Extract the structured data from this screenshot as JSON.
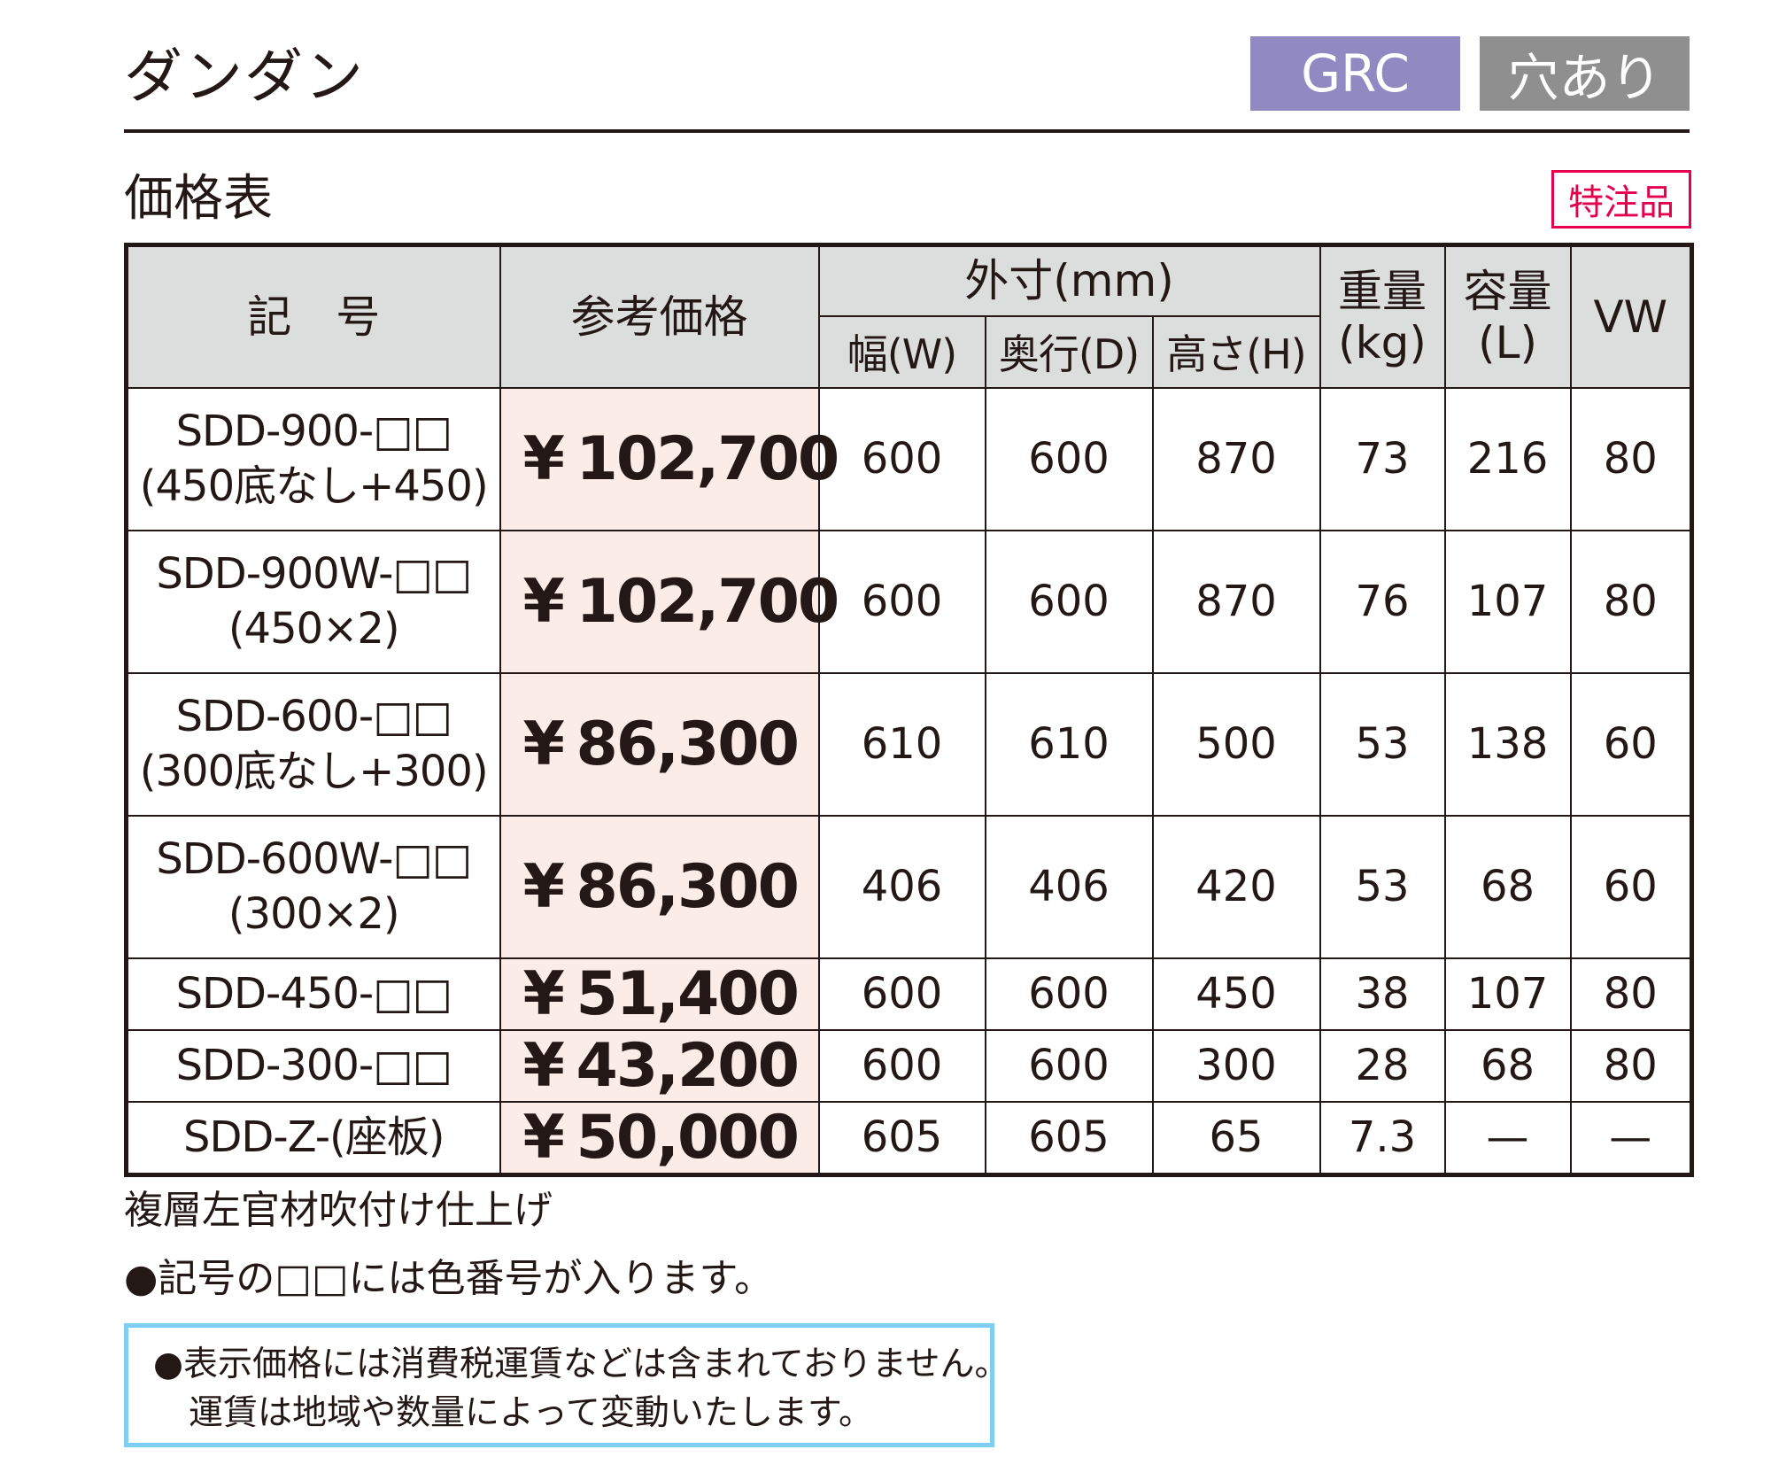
{
  "header": {
    "title": "ダンダン",
    "badges": [
      "GRC",
      "穴あり"
    ],
    "section_title": "価格表",
    "special_order": "特注品"
  },
  "table": {
    "headers": {
      "code": "記　号",
      "price": "参考価格",
      "dimensions": "外寸(mm)",
      "width": "幅(W)",
      "depth": "奥行(D)",
      "height": "高さ(H)",
      "weight_line1": "重量",
      "weight_line2": "(kg)",
      "capacity_line1": "容量",
      "capacity_line2": "(L)",
      "vw": "VW"
    },
    "rows": [
      {
        "code": "SDD-900-□□",
        "code_sub": "(450底なし+450)",
        "yen": "¥",
        "price": "102,700",
        "w": "600",
        "d": "600",
        "h": "870",
        "kg": "73",
        "l": "216",
        "vw": "80"
      },
      {
        "code": "SDD-900W-□□",
        "code_sub": "(450×2)",
        "yen": "¥",
        "price": "102,700",
        "w": "600",
        "d": "600",
        "h": "870",
        "kg": "76",
        "l": "107",
        "vw": "80"
      },
      {
        "code": "SDD-600-□□",
        "code_sub": "(300底なし+300)",
        "yen": "¥",
        "price": "86,300",
        "w": "610",
        "d": "610",
        "h": "500",
        "kg": "53",
        "l": "138",
        "vw": "60"
      },
      {
        "code": "SDD-600W-□□",
        "code_sub": "(300×2)",
        "yen": "¥",
        "price": "86,300",
        "w": "406",
        "d": "406",
        "h": "420",
        "kg": "53",
        "l": "68",
        "vw": "60"
      },
      {
        "code": "SDD-450-□□",
        "yen": "¥",
        "price": "51,400",
        "w": "600",
        "d": "600",
        "h": "450",
        "kg": "38",
        "l": "107",
        "vw": "80"
      },
      {
        "code": "SDD-300-□□",
        "yen": "¥",
        "price": "43,200",
        "w": "600",
        "d": "600",
        "h": "300",
        "kg": "28",
        "l": "68",
        "vw": "80"
      },
      {
        "code": "SDD-Z-(座板)",
        "yen": "¥",
        "price": "50,000",
        "w": "605",
        "d": "605",
        "h": "65",
        "kg": "7.3",
        "l": "—",
        "vw": "—"
      }
    ]
  },
  "notes": {
    "finish": "複層左官材吹付け仕上げ",
    "color_note": "●記号の□□には色番号が入ります。",
    "box_line1": "●表示価格には消費税運賃などは含まれておりません。",
    "box_line2": "運賃は地域や数量によって変動いたします。"
  },
  "colors": {
    "grc_badge": "#9189c2",
    "hole_badge": "#8f8f8f",
    "special_order": "#e6004c",
    "header_bg": "#dcdddd",
    "price_bg": "#fcece8",
    "note_border": "#7ecef4"
  }
}
